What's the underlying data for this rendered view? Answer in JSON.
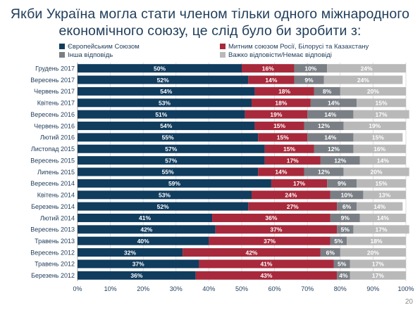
{
  "title": "Якби Україна могла стати членом тільки одного міжнародного економічного союзу, це слід було би зробити з:",
  "page_number": "20",
  "colors": {
    "eu": "#103c5e",
    "cu": "#a7293b",
    "other": "#7a7f85",
    "dk": "#b9b9b9"
  },
  "chart_data": {
    "type": "bar",
    "orientation": "horizontal",
    "stacked": true,
    "title": "Якби Україна могла стати членом тільки одного міжнародного економічного союзу, це слід було би зробити з:",
    "xlim": [
      0,
      100
    ],
    "x_ticks": [
      "0%",
      "10%",
      "20%",
      "30%",
      "40%",
      "50%",
      "60%",
      "70%",
      "80%",
      "90%",
      "100%"
    ],
    "grid": true,
    "legend_position": "top",
    "categories": [
      "Грудень 2017",
      "Вересень 2017",
      "Червень 2017",
      "Квітень 2017",
      "Вересень 2016",
      "Червень 2016",
      "Лютий 2016",
      "Листопад 2015",
      "Вересень 2015",
      "Липень 2015",
      "Вересень 2014",
      "Квітень 2014",
      "Березень 2014",
      "Лютий 2014",
      "Вересень 2013",
      "Травень 2013",
      "Вересень 2012",
      "Травень 2012",
      "Березень 2012"
    ],
    "series": [
      {
        "name": "Європейським Союзом",
        "key": "eu",
        "values": [
          50,
          52,
          54,
          53,
          51,
          54,
          55,
          57,
          57,
          55,
          59,
          53,
          52,
          41,
          42,
          40,
          32,
          37,
          36
        ]
      },
      {
        "name": "Митним союзом Росії, Білорусі та Казахстану",
        "key": "cu",
        "values": [
          16,
          14,
          18,
          18,
          19,
          15,
          15,
          15,
          17,
          14,
          17,
          24,
          27,
          36,
          37,
          37,
          42,
          41,
          43
        ]
      },
      {
        "name": "Інша відповідь",
        "key": "other",
        "values": [
          10,
          9,
          8,
          14,
          14,
          12,
          14,
          12,
          12,
          12,
          9,
          10,
          6,
          9,
          5,
          5,
          6,
          5,
          4
        ]
      },
      {
        "name": "Важко відповісти/Немає відповіді",
        "key": "dk",
        "values": [
          24,
          24,
          20,
          15,
          17,
          19,
          15,
          16,
          14,
          20,
          15,
          13,
          14,
          14,
          17,
          18,
          20,
          17,
          17
        ]
      }
    ]
  }
}
